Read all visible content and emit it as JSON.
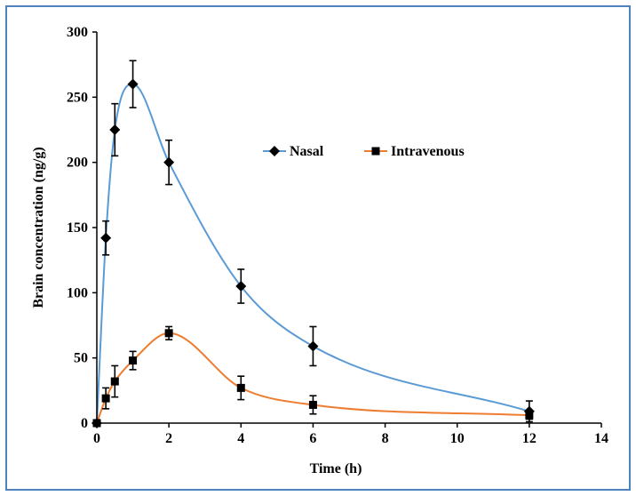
{
  "chart_data": {
    "type": "line",
    "title": "",
    "xlabel": "Time (h)",
    "ylabel": "Brain concentration (ng/g)",
    "xlim": [
      0,
      14
    ],
    "ylim": [
      0,
      300
    ],
    "xticks": [
      0,
      2,
      4,
      6,
      8,
      10,
      12,
      14
    ],
    "yticks": [
      0,
      50,
      100,
      150,
      200,
      250,
      300
    ],
    "grid": false,
    "legend_position": "upper-right",
    "series": [
      {
        "name": "Nasal",
        "marker": "diamond",
        "color": "#5b9bd5",
        "x": [
          0,
          0.25,
          0.5,
          1,
          2,
          4,
          6,
          12
        ],
        "y": [
          0,
          142,
          225,
          260,
          200,
          105,
          59,
          9
        ],
        "error": [
          0,
          13,
          20,
          18,
          17,
          13,
          15,
          8
        ]
      },
      {
        "name": "Intravenous",
        "marker": "square",
        "color": "#ed7d31",
        "x": [
          0,
          0.25,
          0.5,
          1,
          2,
          4,
          6,
          12
        ],
        "y": [
          0,
          19,
          32,
          48,
          69,
          27,
          14,
          6
        ],
        "error": [
          0,
          8,
          12,
          7,
          5,
          9,
          7,
          3
        ]
      }
    ]
  }
}
